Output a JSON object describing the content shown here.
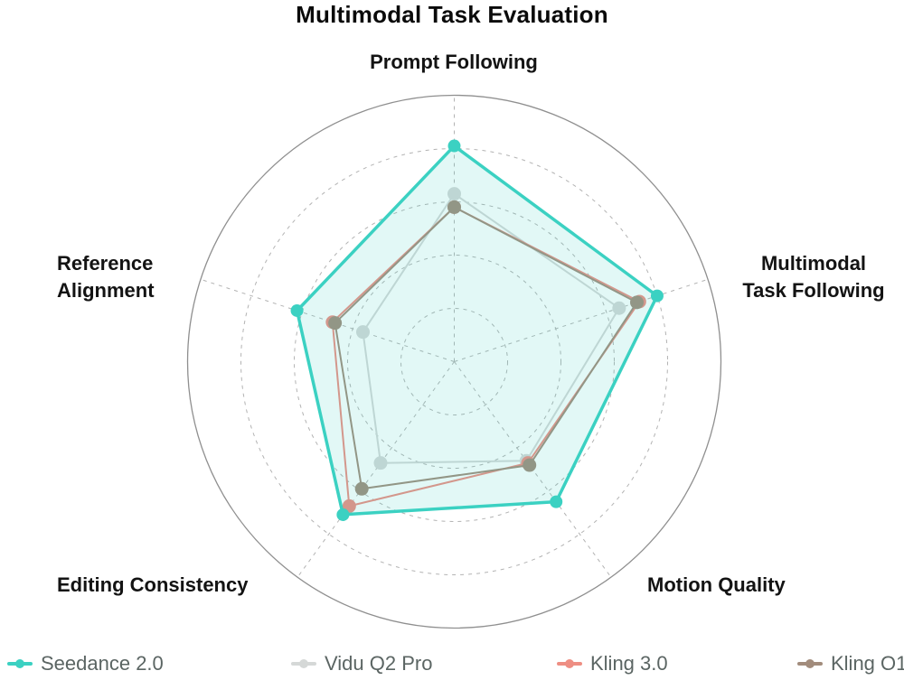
{
  "title": "Multimodal Task Evaluation",
  "chart_data": {
    "type": "radar",
    "title": "Multimodal Task Evaluation",
    "axes": [
      "Prompt Following",
      "Multimodal Task Following",
      "Motion Quality",
      "Editing Consistency",
      "Reference Alignment"
    ],
    "axis_labels_display": [
      [
        "Prompt Following"
      ],
      [
        "Multimodal",
        "Task Following"
      ],
      [
        "Motion Quality"
      ],
      [
        "Editing Consistency"
      ],
      [
        "Reference",
        "Alignment"
      ]
    ],
    "scale": {
      "min": 0,
      "max": 100,
      "gridlines": [
        20,
        40,
        60,
        80,
        100
      ],
      "gridline_labels_visible": false
    },
    "grid": "dashed-circles-and-spokes",
    "legend_position": "bottom",
    "series": [
      {
        "name": "Seedance 2.0",
        "color": "#3BD1C2",
        "fill_opacity": 0.15,
        "values": [
          81,
          80,
          65,
          71,
          62
        ]
      },
      {
        "name": "Vidu Q2 Pro",
        "color": "#D5D8D7",
        "fill_opacity": 0,
        "values": [
          63,
          65,
          46,
          47,
          36
        ]
      },
      {
        "name": "Kling 3.0",
        "color": "#EE8E83",
        "fill_opacity": 0,
        "values": [
          58,
          73,
          47,
          67,
          48
        ]
      },
      {
        "name": "Kling O1",
        "color": "#A28C7C",
        "fill_opacity": 0,
        "values": [
          58,
          72,
          48,
          59,
          47
        ]
      }
    ]
  },
  "colors": {
    "background": "#ffffff",
    "grid": "#b3b3b3",
    "outer_circle": "#8f8f8f",
    "title_text": "#0a0a0a",
    "axis_label_text": "#131313",
    "legend_text": "#5b6563"
  }
}
